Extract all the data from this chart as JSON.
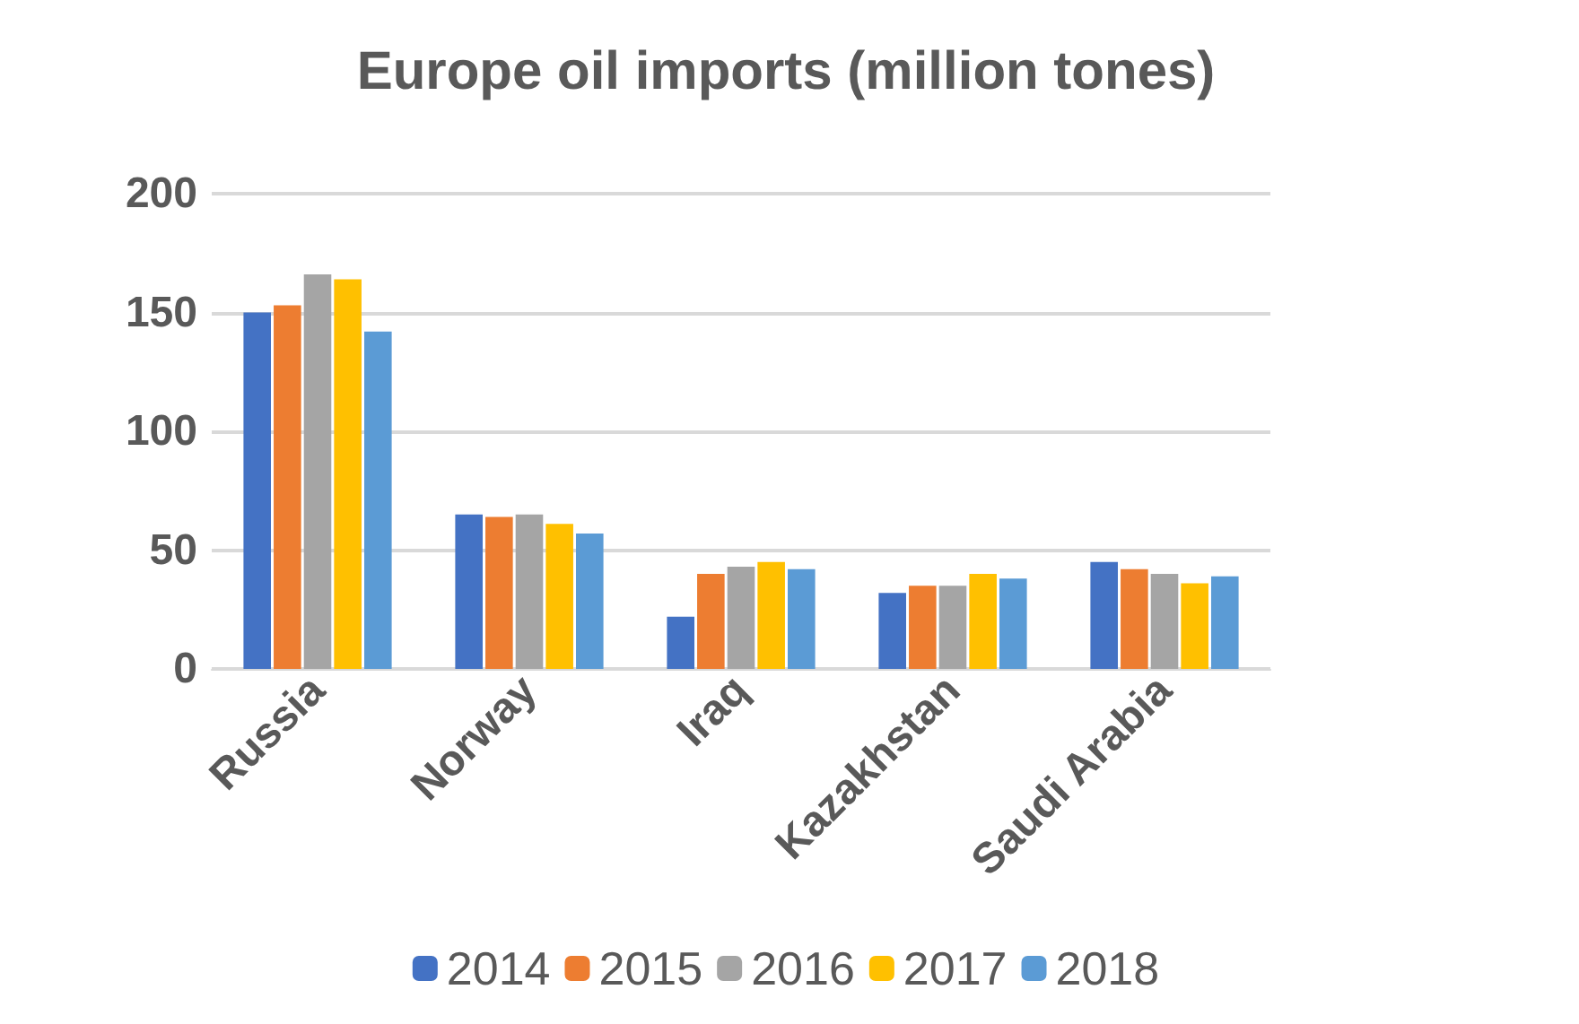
{
  "chart_data": {
    "type": "bar",
    "title": "Europe oil imports (million tones)",
    "categories": [
      "Russia",
      "Norway",
      "Iraq",
      "Kazakhstan",
      "Saudi Arabia"
    ],
    "series": [
      {
        "name": "2014",
        "color": "#4472c4",
        "values": [
          150,
          65,
          22,
          32,
          45
        ]
      },
      {
        "name": "2015",
        "color": "#ed7d31",
        "values": [
          153,
          64,
          40,
          35,
          42
        ]
      },
      {
        "name": "2016",
        "color": "#a5a5a5",
        "values": [
          166,
          65,
          43,
          35,
          40
        ]
      },
      {
        "name": "2017",
        "color": "#ffc000",
        "values": [
          164,
          61,
          45,
          40,
          36
        ]
      },
      {
        "name": "2018",
        "color": "#5b9bd5",
        "values": [
          142,
          57,
          42,
          38,
          39
        ]
      }
    ],
    "ylim": [
      0,
      200
    ],
    "yticks": [
      0,
      50,
      100,
      150,
      200
    ],
    "grid": "y",
    "legend": "bottom"
  }
}
